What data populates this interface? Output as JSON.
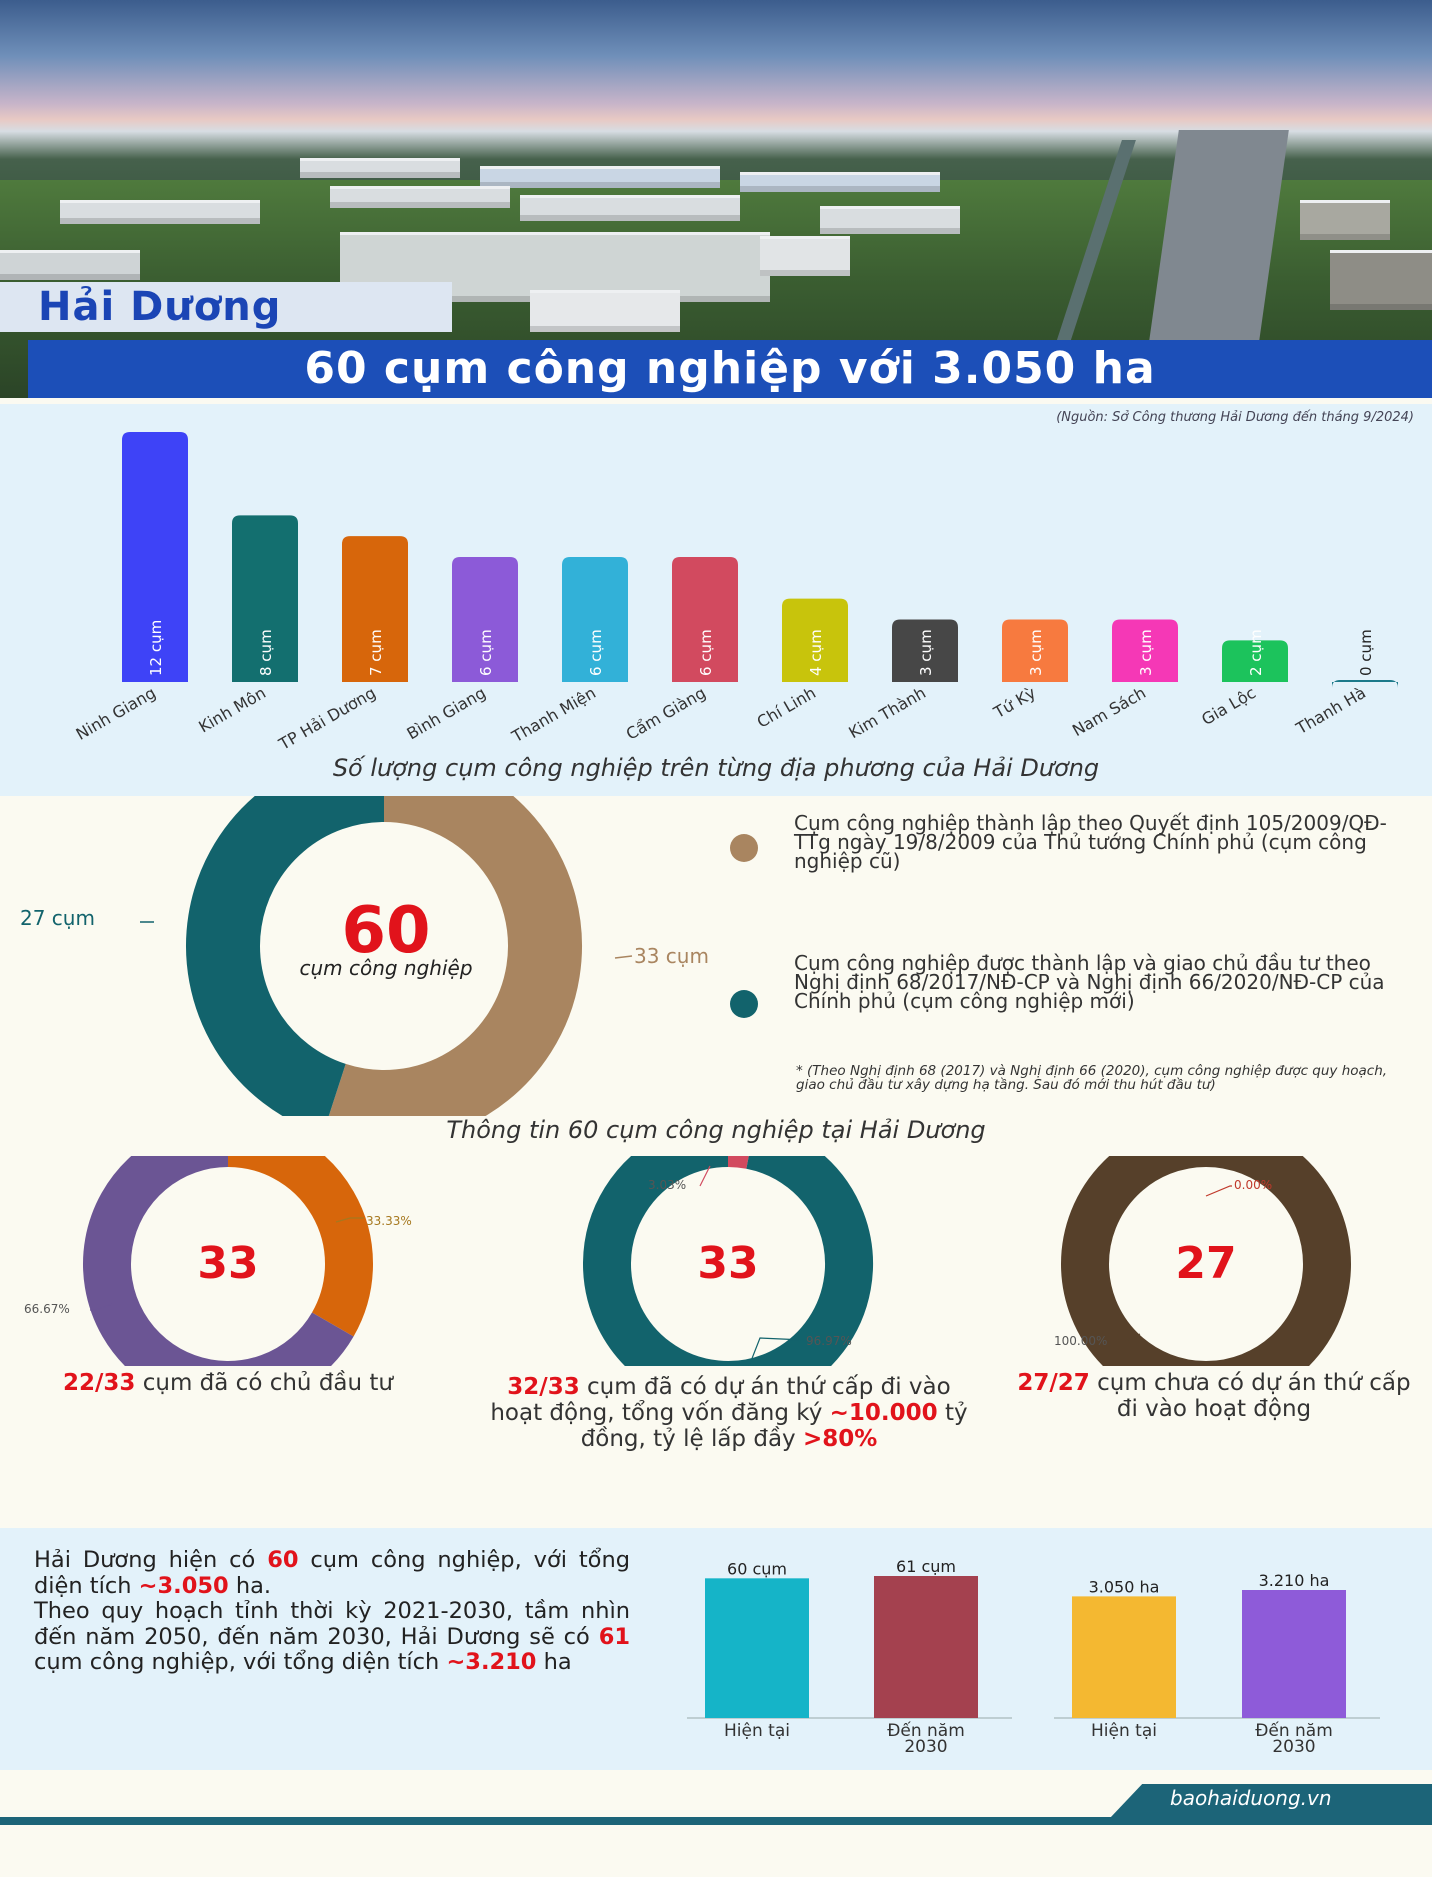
{
  "hero": {
    "label": "Hải Dương",
    "title": "60 cụm công nghiệp với 3.050 ha"
  },
  "section1": {
    "source": "(Nguồn: Sở Công thương Hải Dương đến tháng 9/2024)",
    "title": "Số lượng cụm công nghiệp trên từng địa phương của Hải Dương"
  },
  "section2": {
    "center_number": "60",
    "center_label": "cụm công nghiệp",
    "label_left": "27 cụm",
    "label_right": "33 cụm",
    "legend": [
      {
        "text": "Cụm công nghiệp thành lập theo Quyết định 105/2009/QĐ-TTg ngày 19/8/2009 của Thủ tướng Chính phủ (cụm công nghiệp cũ)",
        "color": "#a98560"
      },
      {
        "text": "Cụm công nghiệp được thành lập và giao chủ đầu tư theo Nghị định 68/2017/NĐ-CP và Nghị định 66/2020/NĐ-CP của Chính phủ (cụm công nghiệp mới)",
        "color": "#12636c"
      }
    ],
    "note": "* (Theo Nghị định 68 (2017) và Nghị định 66 (2020), cụm công nghiệp được quy hoạch, giao chủ đầu tư xây dựng hạ tầng. Sau đó mới thu hút đầu tư)",
    "title": "Thông tin 60 cụm công nghiệp tại Hải Dương"
  },
  "section3": {
    "d1": {
      "number": "33",
      "pct_a": "33.33%",
      "pct_b": "66.67%",
      "cap_red": "22/33",
      "cap_rest": " cụm đã có chủ đầu tư"
    },
    "d2": {
      "number": "33",
      "pct_a": "3.03%",
      "pct_b": "96.97%",
      "cap_red1": "32/33",
      "cap_t1": " cụm đã có dự án thứ cấp đi vào hoạt động, tổng vốn đăng ký ",
      "cap_red2": "~10.000",
      "cap_t2": " tỷ đồng, tỷ lệ lấp đầy ",
      "cap_red3": ">80%"
    },
    "d3": {
      "number": "27",
      "pct_a": "0.00%",
      "pct_b": "100.00%",
      "cap_red": "27/27",
      "cap_rest": " cụm chưa có dự án thứ cấp đi vào hoạt động"
    }
  },
  "section4": {
    "p1": "Hải Dương hiện có ",
    "p1_red1": "60",
    "p1_b": " cụm công nghiệp, với tổng diện tích ",
    "p1_red2": "~3.050",
    "p1_c": " ha.",
    "p2": "Theo quy hoạch tỉnh thời kỳ 2021-2030, tầm nhìn đến năm 2050, đến năm 2030, Hải Dương sẽ có ",
    "p2_red1": "61",
    "p2_b": " cụm công nghiệp, với tổng diện tích ",
    "p2_red2": "~3.210",
    "p2_c": " ha"
  },
  "footer": {
    "site": "baohaiduong.vn"
  },
  "chart_data": [
    {
      "type": "bar",
      "title": "Số lượng cụm công nghiệp trên từng địa phương của Hải Dương",
      "categories": [
        "Ninh Giang",
        "Kinh Môn",
        "TP Hải Dương",
        "Bình Giang",
        "Thanh Miện",
        "Cẩm Giàng",
        "Chí Linh",
        "Kim Thành",
        "Tứ Kỳ",
        "Nam Sách",
        "Gia Lộc",
        "Thanh Hà"
      ],
      "values": [
        12,
        8,
        7,
        6,
        6,
        6,
        4,
        3,
        3,
        3,
        2,
        0
      ],
      "value_labels": [
        "12 cụm",
        "8 cụm",
        "7 cụm",
        "6 cụm",
        "6 cụm",
        "6 cụm",
        "4 cụm",
        "3 cụm",
        "3 cụm",
        "3 cụm",
        "2 cụm",
        "0 cụm"
      ],
      "colors": [
        "#3e43f7",
        "#136f6f",
        "#d7660b",
        "#8c5ad8",
        "#32b1d8",
        "#d24a5f",
        "#c8c40c",
        "#474747",
        "#f77a3f",
        "#f538b6",
        "#1cc35c",
        "#1c7a8a"
      ],
      "ylim": [
        0,
        12
      ]
    },
    {
      "type": "pie",
      "labels": [
        "27 cụm",
        "33 cụm"
      ],
      "values": [
        27,
        33
      ],
      "colors": [
        "#12636c",
        "#a98560"
      ]
    },
    {
      "type": "pie",
      "labels": [
        "33.33%",
        "66.67%"
      ],
      "values": [
        33.33,
        66.67
      ],
      "colors": [
        "#d7660b",
        "#6b5594"
      ]
    },
    {
      "type": "pie",
      "labels": [
        "3.03%",
        "96.97%"
      ],
      "values": [
        3.03,
        96.97
      ],
      "colors": [
        "#d24a5f",
        "#12636c"
      ]
    },
    {
      "type": "pie",
      "labels": [
        "0.00%",
        "100.00%"
      ],
      "values": [
        0,
        100
      ],
      "colors": [
        "#c0392b",
        "#56402a"
      ]
    },
    {
      "type": "bar",
      "categories": [
        "Hiện tại",
        "Đến năm 2030"
      ],
      "values": [
        60,
        61
      ],
      "value_labels": [
        "60 cụm",
        "61 cụm"
      ],
      "colors": [
        "#15b4c8",
        "#a4414f"
      ]
    },
    {
      "type": "bar",
      "categories": [
        "Hiện tại",
        "Đến năm 2030"
      ],
      "values": [
        3050,
        3210
      ],
      "value_labels": [
        "3.050 ha",
        "3.210 ha"
      ],
      "colors": [
        "#f4b831",
        "#8e5bd9"
      ]
    }
  ]
}
